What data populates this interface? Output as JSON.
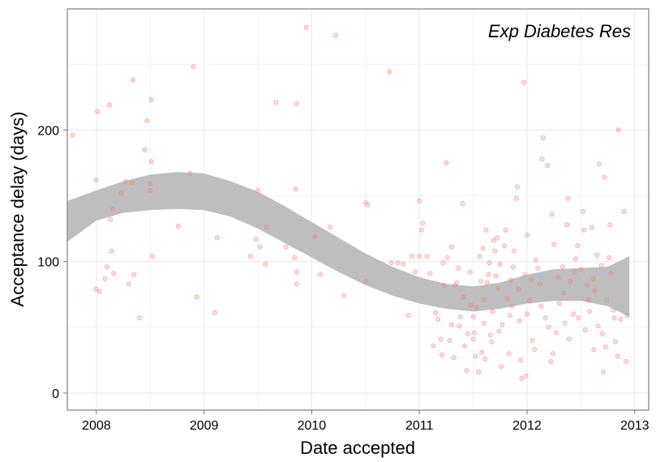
{
  "chart_data": {
    "type": "scatter",
    "annotation": "Exp Diabetes Res",
    "xlabel": "Date accepted",
    "ylabel": "Acceptance delay (days)",
    "xlim": [
      2007.73,
      2013.13
    ],
    "ylim": [
      -13,
      292
    ],
    "x_ticks": [
      2008,
      2009,
      2010,
      2011,
      2012,
      2013
    ],
    "x_tick_labels": [
      "2008",
      "2009",
      "2010",
      "2011",
      "2012",
      "2013"
    ],
    "y_ticks": [
      0,
      100,
      200
    ],
    "y_tick_labels": [
      "0",
      "100",
      "200"
    ],
    "grid": true,
    "background": "#ffffff",
    "grid_color": "#ebebeb",
    "point_color": "#f8766d",
    "band_color": "#bebebe",
    "series": [
      {
        "kind": "points",
        "points": [
          [
            2007.78,
            196
          ],
          [
            2008.0,
            162
          ],
          [
            2008.01,
            214
          ],
          [
            2008.0,
            79
          ],
          [
            2008.03,
            77
          ],
          [
            2008.08,
            87
          ],
          [
            2008.1,
            96
          ],
          [
            2008.12,
            219
          ],
          [
            2008.13,
            132
          ],
          [
            2008.14,
            108
          ],
          [
            2008.16,
            91
          ],
          [
            2008.15,
            140
          ],
          [
            2008.23,
            152
          ],
          [
            2008.27,
            161
          ],
          [
            2008.3,
            83
          ],
          [
            2008.33,
            160
          ],
          [
            2008.34,
            238
          ],
          [
            2008.35,
            90
          ],
          [
            2008.4,
            57
          ],
          [
            2008.45,
            185
          ],
          [
            2008.47,
            207
          ],
          [
            2008.5,
            159
          ],
          [
            2008.5,
            154
          ],
          [
            2008.51,
            223
          ],
          [
            2008.51,
            176
          ],
          [
            2008.52,
            104
          ],
          [
            2008.76,
            127
          ],
          [
            2008.87,
            167
          ],
          [
            2008.9,
            248
          ],
          [
            2008.93,
            73
          ],
          [
            2009.1,
            61
          ],
          [
            2009.12,
            118
          ],
          [
            2009.43,
            104
          ],
          [
            2009.48,
            117
          ],
          [
            2009.5,
            154
          ],
          [
            2009.52,
            111
          ],
          [
            2009.57,
            98
          ],
          [
            2009.58,
            126
          ],
          [
            2009.67,
            221
          ],
          [
            2009.76,
            111
          ],
          [
            2009.84,
            103
          ],
          [
            2009.85,
            155
          ],
          [
            2009.86,
            220
          ],
          [
            2009.86,
            92
          ],
          [
            2009.86,
            83
          ],
          [
            2009.95,
            278
          ],
          [
            2010.03,
            119
          ],
          [
            2010.08,
            90
          ],
          [
            2010.17,
            126
          ],
          [
            2010.22,
            272
          ],
          [
            2010.3,
            74
          ],
          [
            2010.5,
            145
          ],
          [
            2010.5,
            85
          ],
          [
            2010.72,
            244
          ],
          [
            2010.52,
            143
          ]
        ]
      },
      {
        "kind": "points",
        "points": [
          [
            2010.74,
            99
          ],
          [
            2010.8,
            99
          ],
          [
            2010.85,
            98
          ],
          [
            2010.9,
            59
          ],
          [
            2010.93,
            104
          ],
          [
            2010.96,
            92
          ],
          [
            2011.0,
            104
          ],
          [
            2011.0,
            146
          ],
          [
            2011.02,
            124
          ],
          [
            2011.03,
            129
          ],
          [
            2011.07,
            104
          ],
          [
            2011.1,
            91
          ],
          [
            2011.15,
            61
          ],
          [
            2011.17,
            56
          ],
          [
            2011.2,
            41
          ],
          [
            2011.22,
            99
          ],
          [
            2011.23,
            82
          ],
          [
            2011.25,
            175
          ],
          [
            2011.26,
            103
          ],
          [
            2011.28,
            40
          ],
          [
            2011.3,
            111
          ],
          [
            2011.32,
            27
          ],
          [
            2011.33,
            82
          ],
          [
            2011.35,
            84
          ],
          [
            2011.37,
            51
          ],
          [
            2011.4,
            144
          ],
          [
            2011.42,
            36
          ],
          [
            2011.45,
            45
          ],
          [
            2011.48,
            67
          ],
          [
            2011.5,
            41
          ],
          [
            2011.5,
            58
          ],
          [
            2011.52,
            28
          ],
          [
            2011.53,
            65
          ],
          [
            2011.55,
            16
          ],
          [
            2011.56,
            104
          ],
          [
            2011.58,
            31
          ],
          [
            2011.6,
            53
          ],
          [
            2011.6,
            71
          ],
          [
            2011.62,
            124
          ],
          [
            2011.63,
            84
          ],
          [
            2011.64,
            90
          ],
          [
            2011.66,
            44
          ],
          [
            2011.67,
            39
          ],
          [
            2011.68,
            62
          ],
          [
            2011.7,
            108
          ],
          [
            2011.72,
            118
          ],
          [
            2011.73,
            80
          ],
          [
            2011.75,
            98
          ],
          [
            2011.76,
            20
          ],
          [
            2011.77,
            52
          ],
          [
            2011.8,
            124
          ],
          [
            2011.82,
            72
          ],
          [
            2011.83,
            30
          ],
          [
            2011.85,
            86
          ],
          [
            2011.86,
            66
          ],
          [
            2011.88,
            108
          ],
          [
            2011.9,
            148
          ],
          [
            2011.92,
            79
          ],
          [
            2011.93,
            55
          ],
          [
            2011.95,
            11
          ],
          [
            2011.97,
            236
          ],
          [
            2011.98,
            90
          ],
          [
            2012.0,
            60
          ],
          [
            2012.0,
            120
          ],
          [
            2012.02,
            70
          ],
          [
            2012.05,
            40
          ],
          [
            2012.07,
            33
          ],
          [
            2012.1,
            95
          ],
          [
            2012.12,
            83
          ],
          [
            2012.14,
            178
          ],
          [
            2012.15,
            194
          ],
          [
            2012.17,
            57
          ],
          [
            2012.2,
            50
          ],
          [
            2012.22,
            24
          ],
          [
            2012.23,
            136
          ],
          [
            2012.25,
            113
          ],
          [
            2012.27,
            46
          ],
          [
            2012.3,
            68
          ],
          [
            2012.33,
            96
          ],
          [
            2012.35,
            53
          ],
          [
            2012.37,
            128
          ],
          [
            2012.38,
            148
          ],
          [
            2012.4,
            85
          ],
          [
            2012.43,
            60
          ],
          [
            2012.45,
            102
          ],
          [
            2012.47,
            112
          ],
          [
            2012.5,
            94
          ],
          [
            2012.52,
            138
          ],
          [
            2012.54,
            48
          ],
          [
            2012.56,
            82
          ],
          [
            2012.58,
            62
          ],
          [
            2012.6,
            126
          ],
          [
            2012.62,
            33
          ],
          [
            2012.63,
            78
          ],
          [
            2012.65,
            105
          ],
          [
            2012.67,
            174
          ],
          [
            2012.7,
            45
          ],
          [
            2012.71,
            16
          ],
          [
            2012.72,
            164
          ],
          [
            2012.74,
            71
          ],
          [
            2012.76,
            103
          ],
          [
            2012.77,
            128
          ],
          [
            2012.8,
            63
          ],
          [
            2012.82,
            39
          ],
          [
            2012.84,
            28
          ],
          [
            2012.85,
            200
          ],
          [
            2012.87,
            56
          ],
          [
            2012.9,
            138
          ],
          [
            2012.92,
            24
          ],
          [
            2012.93,
            59
          ],
          [
            2011.13,
            36
          ],
          [
            2011.21,
            29
          ],
          [
            2011.3,
            52
          ],
          [
            2011.38,
            58
          ],
          [
            2011.44,
            17
          ],
          [
            2011.47,
            92
          ],
          [
            2011.51,
            46
          ],
          [
            2011.57,
            85
          ],
          [
            2011.61,
            26
          ],
          [
            2011.69,
            116
          ],
          [
            2011.74,
            47
          ],
          [
            2011.79,
            112
          ],
          [
            2011.84,
            59
          ],
          [
            2011.87,
            96
          ],
          [
            2011.91,
            157
          ],
          [
            2011.94,
            25
          ],
          [
            2011.99,
            13
          ],
          [
            2012.04,
            86
          ],
          [
            2012.08,
            101
          ],
          [
            2012.13,
            66
          ],
          [
            2012.19,
            173
          ],
          [
            2012.24,
            30
          ],
          [
            2012.29,
            88
          ],
          [
            2012.34,
            76
          ],
          [
            2012.39,
            41
          ],
          [
            2012.44,
            92
          ],
          [
            2012.48,
            57
          ],
          [
            2012.53,
            124
          ],
          [
            2012.57,
            71
          ],
          [
            2012.61,
            87
          ],
          [
            2012.66,
            51
          ],
          [
            2012.69,
            97
          ],
          [
            2012.73,
            35
          ],
          [
            2012.78,
            91
          ],
          [
            2012.81,
            57
          ],
          [
            2011.36,
            95
          ],
          [
            2011.41,
            73
          ],
          [
            2011.59,
            110
          ],
          [
            2011.65,
            99
          ],
          [
            2011.71,
            89
          ]
        ]
      },
      {
        "kind": "confidence-band",
        "x": [
          2007.73,
          2008.0,
          2008.25,
          2008.5,
          2008.75,
          2009.0,
          2009.25,
          2009.5,
          2009.75,
          2010.0,
          2010.25,
          2010.5,
          2010.75,
          2011.0,
          2011.25,
          2011.5,
          2011.75,
          2012.0,
          2012.25,
          2012.5,
          2012.75,
          2012.95
        ],
        "upper": [
          146,
          154,
          161,
          166,
          168,
          167,
          161,
          153,
          142,
          130,
          118,
          106,
          96,
          88,
          83,
          81,
          84,
          90,
          94,
          95,
          96,
          104
        ],
        "lower": [
          115,
          131,
          137,
          139,
          140,
          139,
          134,
          125,
          114,
          103,
          92,
          82,
          74,
          68,
          64,
          62,
          64,
          68,
          70,
          70,
          66,
          58
        ]
      }
    ]
  }
}
